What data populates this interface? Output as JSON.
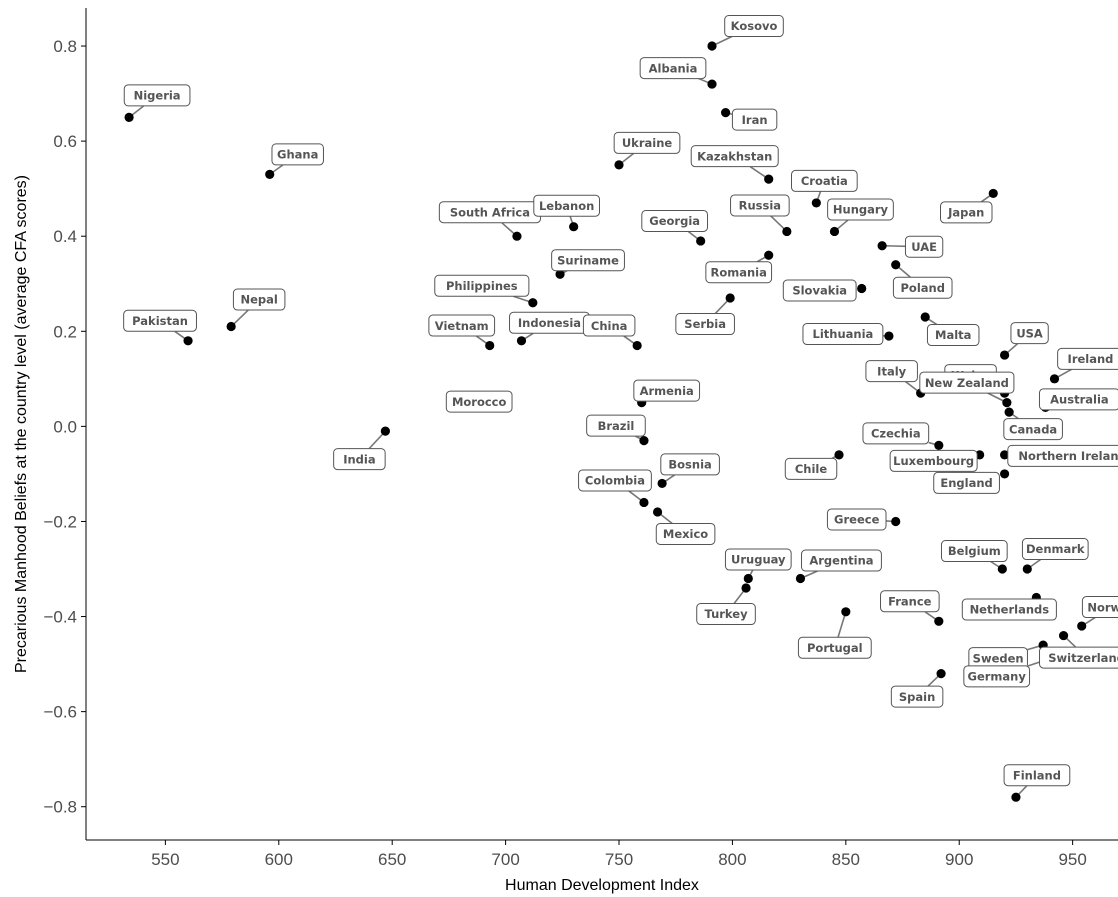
{
  "chart_data": {
    "type": "scatter",
    "title": "",
    "xlabel": "Human Development Index",
    "ylabel": "Precarious Manhood Beliefs at the country level (average CFA scores)",
    "xlim": [
      515,
      970
    ],
    "ylim": [
      -0.87,
      0.88
    ],
    "x_ticks": [
      550,
      600,
      650,
      700,
      750,
      800,
      850,
      900,
      950
    ],
    "y_ticks": [
      0.8,
      0.6,
      0.4,
      0.2,
      0.0,
      -0.2,
      -0.4,
      -0.6,
      -0.8
    ],
    "x_tick_labels": [
      "550",
      "600",
      "650",
      "700",
      "750",
      "800",
      "850",
      "900",
      "950"
    ],
    "y_tick_labels": [
      "0.8",
      "0.6",
      "0.4",
      "0.2",
      "0.0",
      "−0.2",
      "−0.4",
      "−0.6",
      "−0.8"
    ],
    "grid": false,
    "legend": "none",
    "points": [
      {
        "label": "Nigeria",
        "x": 534,
        "y": 0.65
      },
      {
        "label": "Pakistan",
        "x": 560,
        "y": 0.18
      },
      {
        "label": "Nepal",
        "x": 579,
        "y": 0.21
      },
      {
        "label": "Ghana",
        "x": 596,
        "y": 0.53
      },
      {
        "label": "India",
        "x": 647,
        "y": -0.01
      },
      {
        "label": "Morocco",
        "x": 676,
        "y": 0.05
      },
      {
        "label": "Vietnam",
        "x": 693,
        "y": 0.17
      },
      {
        "label": "South Africa",
        "x": 705,
        "y": 0.4
      },
      {
        "label": "Indonesia",
        "x": 707,
        "y": 0.18
      },
      {
        "label": "Philippines",
        "x": 712,
        "y": 0.26
      },
      {
        "label": "Suriname",
        "x": 724,
        "y": 0.32
      },
      {
        "label": "Lebanon",
        "x": 730,
        "y": 0.42
      },
      {
        "label": "Ukraine",
        "x": 750,
        "y": 0.55
      },
      {
        "label": "China",
        "x": 758,
        "y": 0.17
      },
      {
        "label": "Armenia",
        "x": 760,
        "y": 0.05
      },
      {
        "label": "Brazil",
        "x": 761,
        "y": -0.03
      },
      {
        "label": "Colombia",
        "x": 761,
        "y": -0.16
      },
      {
        "label": "Mexico",
        "x": 767,
        "y": -0.18
      },
      {
        "label": "Bosnia",
        "x": 769,
        "y": -0.12
      },
      {
        "label": "Georgia",
        "x": 786,
        "y": 0.39
      },
      {
        "label": "Kosovo",
        "x": 791,
        "y": 0.8
      },
      {
        "label": "Albania",
        "x": 791,
        "y": 0.72
      },
      {
        "label": "Iran",
        "x": 797,
        "y": 0.66
      },
      {
        "label": "Serbia",
        "x": 799,
        "y": 0.27
      },
      {
        "label": "Turkey",
        "x": 806,
        "y": -0.34
      },
      {
        "label": "Uruguay",
        "x": 807,
        "y": -0.32
      },
      {
        "label": "Kazakhstan",
        "x": 816,
        "y": 0.52
      },
      {
        "label": "Romania",
        "x": 816,
        "y": 0.36
      },
      {
        "label": "Russia",
        "x": 824,
        "y": 0.41
      },
      {
        "label": "Argentina",
        "x": 830,
        "y": -0.32
      },
      {
        "label": "Croatia",
        "x": 837,
        "y": 0.47
      },
      {
        "label": "Chile",
        "x": 847,
        "y": -0.06
      },
      {
        "label": "Hungary",
        "x": 845,
        "y": 0.41
      },
      {
        "label": "Portugal",
        "x": 850,
        "y": -0.39
      },
      {
        "label": "Slovakia",
        "x": 857,
        "y": 0.29
      },
      {
        "label": "UAE",
        "x": 866,
        "y": 0.38
      },
      {
        "label": "Lithuania",
        "x": 869,
        "y": 0.19
      },
      {
        "label": "Poland",
        "x": 872,
        "y": 0.34
      },
      {
        "label": "Greece",
        "x": 872,
        "y": -0.2
      },
      {
        "label": "Italy",
        "x": 883,
        "y": 0.07
      },
      {
        "label": "Malta",
        "x": 885,
        "y": 0.23
      },
      {
        "label": "Czechia",
        "x": 891,
        "y": -0.04
      },
      {
        "label": "France",
        "x": 891,
        "y": -0.41
      },
      {
        "label": "Spain",
        "x": 892,
        "y": -0.52
      },
      {
        "label": "Luxembourg",
        "x": 909,
        "y": -0.06
      },
      {
        "label": "Japan",
        "x": 915,
        "y": 0.49
      },
      {
        "label": "Belgium",
        "x": 919,
        "y": -0.3
      },
      {
        "label": "USA",
        "x": 920,
        "y": 0.15
      },
      {
        "label": "Wales",
        "x": 920,
        "y": 0.07
      },
      {
        "label": "New Zealand",
        "x": 921,
        "y": 0.05
      },
      {
        "label": "Canada",
        "x": 922,
        "y": 0.03
      },
      {
        "label": "Northern Ireland",
        "x": 920,
        "y": -0.06
      },
      {
        "label": "England",
        "x": 920,
        "y": -0.1
      },
      {
        "label": "Finland",
        "x": 925,
        "y": -0.78
      },
      {
        "label": "Denmark",
        "x": 930,
        "y": -0.3
      },
      {
        "label": "Netherlands",
        "x": 934,
        "y": -0.36
      },
      {
        "label": "Sweden",
        "x": 937,
        "y": -0.46
      },
      {
        "label": "Australia",
        "x": 938,
        "y": 0.04
      },
      {
        "label": "Germany",
        "x": 939,
        "y": -0.49
      },
      {
        "label": "Ireland",
        "x": 942,
        "y": 0.1
      },
      {
        "label": "Switzerland",
        "x": 946,
        "y": -0.44
      },
      {
        "label": "Norway",
        "x": 954,
        "y": -0.42
      }
    ]
  }
}
